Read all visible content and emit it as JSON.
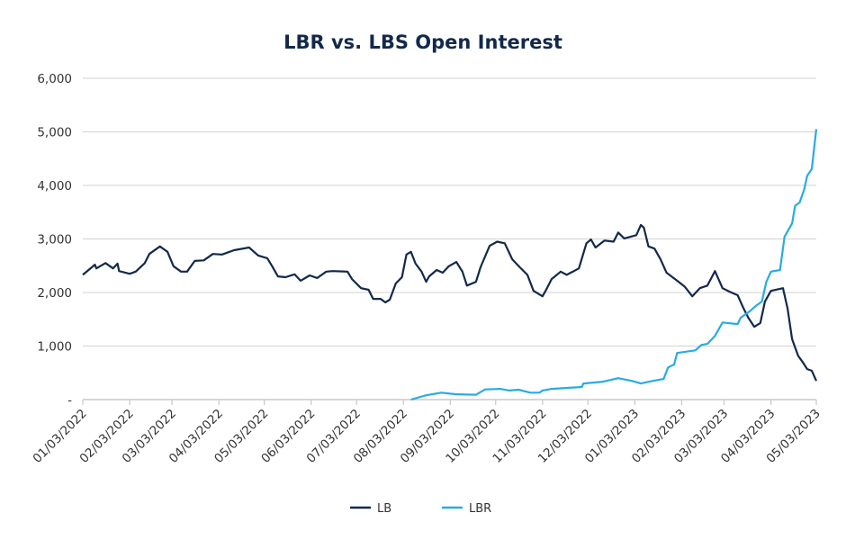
{
  "chart_data": {
    "type": "line",
    "title": "LBR vs. LBS Open Interest",
    "xlabel": "",
    "ylabel": "",
    "xlim": [
      "2022-01-03",
      "2023-05-03"
    ],
    "ylim": [
      0,
      6000
    ],
    "y_ticks": [
      0,
      1000,
      2000,
      3000,
      4000,
      5000,
      6000
    ],
    "y_tick_labels": [
      "-",
      "1,000",
      "2,000",
      "3,000",
      "4,000",
      "5,000",
      "6,000"
    ],
    "x_ticks": [
      "2022-01-03",
      "2022-02-03",
      "2022-03-03",
      "2022-04-03",
      "2022-05-03",
      "2022-06-03",
      "2022-07-03",
      "2022-08-03",
      "2022-09-03",
      "2022-10-03",
      "2022-11-03",
      "2022-12-03",
      "2023-01-03",
      "2023-02-03",
      "2023-03-03",
      "2023-04-03",
      "2023-05-03"
    ],
    "x_tick_labels": [
      "01/03/2022",
      "02/03/2022",
      "03/03/2022",
      "04/03/2022",
      "05/03/2022",
      "06/03/2022",
      "07/03/2022",
      "08/03/2022",
      "09/03/2022",
      "10/03/2022",
      "11/03/2022",
      "12/03/2022",
      "01/03/2023",
      "02/03/2023",
      "03/03/2023",
      "04/03/2023",
      "05/03/2023"
    ],
    "grid": "horizontal",
    "legend": "bottom",
    "series": [
      {
        "name": "LB",
        "color": "#13294b",
        "points": [
          [
            "2022-01-03",
            2330
          ],
          [
            "2022-01-11",
            2520
          ],
          [
            "2022-01-12",
            2450
          ],
          [
            "2022-01-18",
            2550
          ],
          [
            "2022-01-23",
            2450
          ],
          [
            "2022-01-26",
            2540
          ],
          [
            "2022-01-27",
            2400
          ],
          [
            "2022-02-03",
            2350
          ],
          [
            "2022-02-07",
            2390
          ],
          [
            "2022-02-13",
            2550
          ],
          [
            "2022-02-16",
            2720
          ],
          [
            "2022-02-23",
            2860
          ],
          [
            "2022-02-28",
            2760
          ],
          [
            "2022-03-04",
            2490
          ],
          [
            "2022-03-09",
            2390
          ],
          [
            "2022-03-13",
            2390
          ],
          [
            "2022-03-18",
            2590
          ],
          [
            "2022-03-24",
            2600
          ],
          [
            "2022-03-30",
            2720
          ],
          [
            "2022-04-05",
            2710
          ],
          [
            "2022-04-13",
            2790
          ],
          [
            "2022-04-23",
            2840
          ],
          [
            "2022-04-29",
            2690
          ],
          [
            "2022-05-05",
            2640
          ],
          [
            "2022-05-08",
            2500
          ],
          [
            "2022-05-12",
            2300
          ],
          [
            "2022-05-17",
            2285
          ],
          [
            "2022-05-23",
            2340
          ],
          [
            "2022-05-27",
            2220
          ],
          [
            "2022-06-02",
            2320
          ],
          [
            "2022-06-07",
            2270
          ],
          [
            "2022-06-13",
            2390
          ],
          [
            "2022-06-17",
            2400
          ],
          [
            "2022-06-27",
            2390
          ],
          [
            "2022-06-30",
            2250
          ],
          [
            "2022-07-06",
            2080
          ],
          [
            "2022-07-11",
            2050
          ],
          [
            "2022-07-14",
            1880
          ],
          [
            "2022-07-19",
            1880
          ],
          [
            "2022-07-22",
            1815
          ],
          [
            "2022-07-25",
            1865
          ],
          [
            "2022-07-29",
            2170
          ],
          [
            "2022-08-02",
            2285
          ],
          [
            "2022-08-05",
            2710
          ],
          [
            "2022-08-08",
            2760
          ],
          [
            "2022-08-11",
            2540
          ],
          [
            "2022-08-15",
            2390
          ],
          [
            "2022-08-18",
            2200
          ],
          [
            "2022-08-20",
            2300
          ],
          [
            "2022-08-25",
            2420
          ],
          [
            "2022-08-29",
            2370
          ],
          [
            "2022-09-02",
            2490
          ],
          [
            "2022-09-07",
            2570
          ],
          [
            "2022-09-11",
            2390
          ],
          [
            "2022-09-14",
            2130
          ],
          [
            "2022-09-20",
            2200
          ],
          [
            "2022-09-23",
            2470
          ],
          [
            "2022-09-29",
            2870
          ],
          [
            "2022-10-04",
            2950
          ],
          [
            "2022-10-09",
            2920
          ],
          [
            "2022-10-14",
            2620
          ],
          [
            "2022-10-19",
            2470
          ],
          [
            "2022-10-24",
            2330
          ],
          [
            "2022-10-28",
            2030
          ],
          [
            "2022-11-03",
            1930
          ],
          [
            "2022-11-05",
            2030
          ],
          [
            "2022-11-09",
            2250
          ],
          [
            "2022-11-15",
            2390
          ],
          [
            "2022-11-19",
            2330
          ],
          [
            "2022-11-27",
            2450
          ],
          [
            "2022-12-02",
            2920
          ],
          [
            "2022-12-05",
            2990
          ],
          [
            "2022-12-08",
            2840
          ],
          [
            "2022-12-14",
            2970
          ],
          [
            "2022-12-20",
            2950
          ],
          [
            "2022-12-23",
            3120
          ],
          [
            "2022-12-27",
            3010
          ],
          [
            "2023-01-04",
            3070
          ],
          [
            "2023-01-07",
            3260
          ],
          [
            "2023-01-09",
            3210
          ],
          [
            "2023-01-12",
            2860
          ],
          [
            "2023-01-16",
            2820
          ],
          [
            "2023-01-20",
            2620
          ],
          [
            "2023-01-24",
            2370
          ],
          [
            "2023-01-31",
            2220
          ],
          [
            "2023-02-05",
            2110
          ],
          [
            "2023-02-10",
            1930
          ],
          [
            "2023-02-15",
            2080
          ],
          [
            "2023-02-20",
            2130
          ],
          [
            "2023-02-25",
            2400
          ],
          [
            "2023-03-02",
            2080
          ],
          [
            "2023-03-07",
            2010
          ],
          [
            "2023-03-12",
            1950
          ],
          [
            "2023-03-16",
            1700
          ],
          [
            "2023-03-19",
            1530
          ],
          [
            "2023-03-23",
            1360
          ],
          [
            "2023-03-27",
            1430
          ],
          [
            "2023-03-30",
            1830
          ],
          [
            "2023-04-03",
            2030
          ],
          [
            "2023-04-11",
            2080
          ],
          [
            "2023-04-14",
            1700
          ],
          [
            "2023-04-17",
            1130
          ],
          [
            "2023-04-21",
            820
          ],
          [
            "2023-04-24",
            700
          ],
          [
            "2023-04-27",
            570
          ],
          [
            "2023-04-30",
            540
          ],
          [
            "2023-05-03",
            350
          ]
        ]
      },
      {
        "name": "LBR",
        "color": "#29abe2",
        "points": [
          [
            "2022-08-08",
            0
          ],
          [
            "2022-08-18",
            80
          ],
          [
            "2022-08-28",
            130
          ],
          [
            "2022-09-07",
            100
          ],
          [
            "2022-09-20",
            90
          ],
          [
            "2022-09-26",
            190
          ],
          [
            "2022-10-06",
            200
          ],
          [
            "2022-10-12",
            170
          ],
          [
            "2022-10-18",
            185
          ],
          [
            "2022-10-26",
            130
          ],
          [
            "2022-11-01",
            130
          ],
          [
            "2022-11-03",
            170
          ],
          [
            "2022-11-09",
            200
          ],
          [
            "2022-11-29",
            235
          ],
          [
            "2022-11-30",
            300
          ],
          [
            "2022-12-13",
            335
          ],
          [
            "2022-12-23",
            400
          ],
          [
            "2023-01-01",
            350
          ],
          [
            "2023-01-07",
            300
          ],
          [
            "2023-01-15",
            350
          ],
          [
            "2023-01-22",
            385
          ],
          [
            "2023-01-25",
            600
          ],
          [
            "2023-01-29",
            655
          ],
          [
            "2023-01-31",
            870
          ],
          [
            "2023-02-12",
            920
          ],
          [
            "2023-02-16",
            1020
          ],
          [
            "2023-02-20",
            1040
          ],
          [
            "2023-02-25",
            1190
          ],
          [
            "2023-03-02",
            1440
          ],
          [
            "2023-03-12",
            1410
          ],
          [
            "2023-03-14",
            1530
          ],
          [
            "2023-03-20",
            1650
          ],
          [
            "2023-03-24",
            1750
          ],
          [
            "2023-03-28",
            1830
          ],
          [
            "2023-03-31",
            2200
          ],
          [
            "2023-04-03",
            2390
          ],
          [
            "2023-04-09",
            2420
          ],
          [
            "2023-04-12",
            3040
          ],
          [
            "2023-04-17",
            3290
          ],
          [
            "2023-04-19",
            3620
          ],
          [
            "2023-04-22",
            3680
          ],
          [
            "2023-04-25",
            3930
          ],
          [
            "2023-04-27",
            4180
          ],
          [
            "2023-04-30",
            4310
          ],
          [
            "2023-05-03",
            5050
          ]
        ]
      }
    ]
  }
}
